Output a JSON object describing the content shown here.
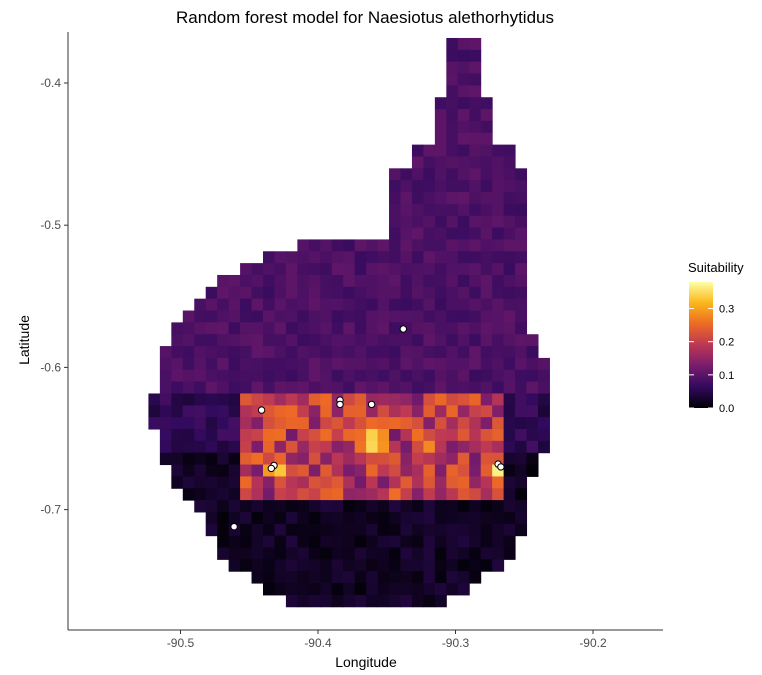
{
  "chart_data": {
    "type": "heatmap",
    "title": "Random forest model for Naesiotus alethorhytidus",
    "xlabel": "Longitude",
    "ylabel": "Latitude",
    "xlim": [
      -90.575,
      -90.16
    ],
    "ylim": [
      -0.775,
      -0.335
    ],
    "x_ticks": [
      -90.5,
      -90.4,
      -90.3,
      -90.2
    ],
    "x_tick_labels": [
      "-90.5",
      "-90.4",
      "-90.3",
      "-90.2"
    ],
    "y_ticks": [
      -0.4,
      -0.5,
      -0.6,
      -0.7
    ],
    "y_tick_labels": [
      "-0.4",
      "-0.5",
      "-0.6",
      "-0.7"
    ],
    "cell_size": 0.0083333,
    "fill_scale": {
      "name": "Suitability",
      "palette": "inferno",
      "limits": [
        0,
        0.38
      ],
      "breaks": [
        0.0,
        0.1,
        0.2,
        0.3
      ],
      "break_labels": [
        "0.0",
        "0.1",
        "0.2",
        "0.3"
      ],
      "colors": [
        "#000004",
        "#320a5e",
        "#781c6d",
        "#bc3754",
        "#ed6925",
        "#fbb61a",
        "#fcffa4"
      ]
    },
    "occurrence_points": [
      {
        "x": -90.338,
        "y": -0.573
      },
      {
        "x": -90.384,
        "y": -0.623
      },
      {
        "x": -90.384,
        "y": -0.626
      },
      {
        "x": -90.361,
        "y": -0.626
      },
      {
        "x": -90.441,
        "y": -0.63
      },
      {
        "x": -90.432,
        "y": -0.669
      },
      {
        "x": -90.434,
        "y": -0.671
      },
      {
        "x": -90.269,
        "y": -0.668
      },
      {
        "x": -90.267,
        "y": -0.67
      },
      {
        "x": -90.461,
        "y": -0.712
      }
    ],
    "grid": false,
    "legend_position": "right"
  }
}
